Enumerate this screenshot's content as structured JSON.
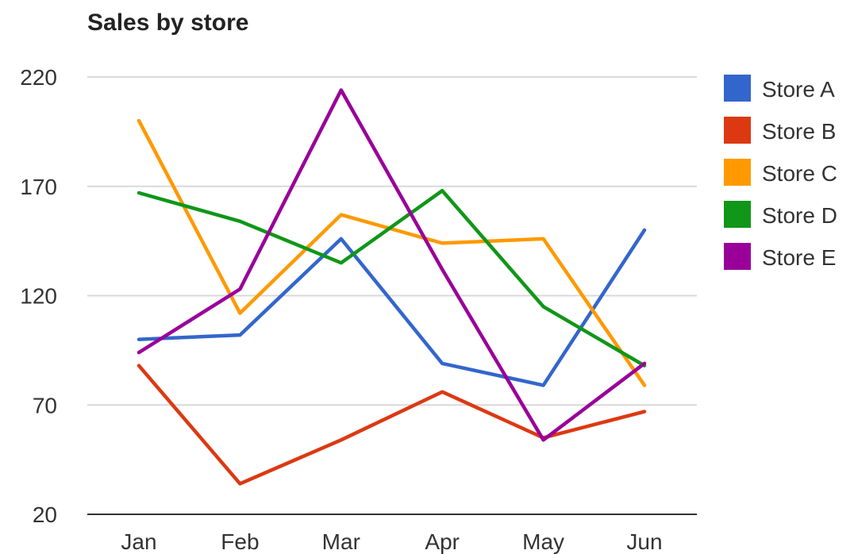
{
  "chart_data": {
    "type": "line",
    "title": "Sales by store",
    "categories": [
      "Jan",
      "Feb",
      "Mar",
      "Apr",
      "May",
      "Jun"
    ],
    "ylim": [
      20,
      220
    ],
    "yticks": [
      20,
      70,
      120,
      170,
      220
    ],
    "grid": true,
    "legend_position": "right",
    "series": [
      {
        "name": "Store A",
        "color": "#3366cc",
        "values": [
          100,
          102,
          146,
          89,
          79,
          150
        ]
      },
      {
        "name": "Store B",
        "color": "#dc3912",
        "values": [
          88,
          34,
          54,
          76,
          55,
          67
        ]
      },
      {
        "name": "Store C",
        "color": "#ff9900",
        "values": [
          200,
          112,
          157,
          144,
          146,
          79
        ]
      },
      {
        "name": "Store D",
        "color": "#109618",
        "values": [
          167,
          154,
          135,
          168,
          115,
          88
        ]
      },
      {
        "name": "Store E",
        "color": "#990099",
        "values": [
          94,
          123,
          214,
          132,
          54,
          89
        ]
      }
    ]
  }
}
